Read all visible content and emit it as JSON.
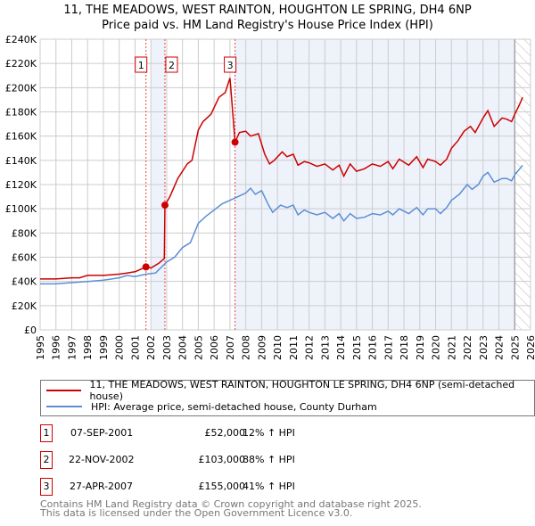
{
  "title_line1": "11, THE MEADOWS, WEST RAINTON, HOUGHTON LE SPRING, DH4 6NP",
  "title_line2": "Price paid vs. HM Land Registry's House Price Index (HPI)",
  "colors": {
    "property": "#cc0000",
    "hpi": "#5b8fd4",
    "shade": "#eef2fb",
    "grid": "#cccccc"
  },
  "chart_data": {
    "type": "line",
    "title": "11, THE MEADOWS, WEST RAINTON, HOUGHTON LE SPRING, DH4 6NP - Price paid vs. HM Land Registry's House Price Index (HPI)",
    "xlim": [
      1995,
      2026
    ],
    "ylim": [
      0,
      240000
    ],
    "x_ticks": [
      "1995",
      "1996",
      "1997",
      "1998",
      "1999",
      "2000",
      "2001",
      "2002",
      "2003",
      "2004",
      "2005",
      "2006",
      "2007",
      "2008",
      "2009",
      "2010",
      "2011",
      "2012",
      "2013",
      "2014",
      "2015",
      "2016",
      "2017",
      "2018",
      "2019",
      "2020",
      "2021",
      "2022",
      "2023",
      "2024",
      "2025",
      "2026"
    ],
    "y_ticks": [
      "£0",
      "£20K",
      "£40K",
      "£60K",
      "£80K",
      "£100K",
      "£120K",
      "£140K",
      "£160K",
      "£180K",
      "£200K",
      "£220K",
      "£240K"
    ],
    "grid": true,
    "forecast_from": 2025.0,
    "series": [
      {
        "name": "11, THE MEADOWS, WEST RAINTON, HOUGHTON LE SPRING, DH4 6NP (semi-detached house)",
        "x": [
          1995,
          1996,
          1997,
          1997.5,
          1998,
          1999,
          2000,
          2000.5,
          2001,
          2001.69,
          2002,
          2002.5,
          2002.85,
          2002.89,
          2003.2,
          2003.7,
          2004.3,
          2004.6,
          2005,
          2005.3,
          2005.8,
          2006.3,
          2006.7,
          2007.0,
          2007.05,
          2007.32,
          2007.6,
          2008,
          2008.3,
          2008.8,
          2009.2,
          2009.5,
          2009.8,
          2010.3,
          2010.6,
          2011,
          2011.3,
          2011.7,
          2012,
          2012.5,
          2013,
          2013.5,
          2013.9,
          2014.2,
          2014.6,
          2015,
          2015.5,
          2016,
          2016.5,
          2017,
          2017.3,
          2017.7,
          2018.3,
          2018.8,
          2019.2,
          2019.5,
          2020,
          2020.3,
          2020.7,
          2021,
          2021.4,
          2021.8,
          2022.2,
          2022.5,
          2023,
          2023.3,
          2023.7,
          2024.2,
          2024.5,
          2024.8,
          2025,
          2025.3,
          2025.5
        ],
        "y": [
          42000,
          42000,
          43000,
          43000,
          45000,
          45000,
          46000,
          47000,
          48000,
          52000,
          51000,
          55000,
          59000,
          103000,
          110000,
          125000,
          137000,
          140000,
          165000,
          172000,
          178000,
          192000,
          196000,
          208000,
          200000,
          155000,
          163000,
          164000,
          160000,
          162000,
          145000,
          137000,
          140000,
          147000,
          143000,
          145000,
          136000,
          139000,
          138000,
          135000,
          137000,
          132000,
          136000,
          127000,
          137000,
          131000,
          133000,
          137000,
          135000,
          139000,
          133000,
          141000,
          136000,
          143000,
          134000,
          141000,
          139000,
          136000,
          141000,
          150000,
          156000,
          164000,
          168000,
          163000,
          175000,
          181000,
          168000,
          175000,
          174000,
          172000,
          178000,
          186000,
          192000
        ]
      },
      {
        "name": "HPI: Average price, semi-detached house, County Durham",
        "x": [
          1995,
          1996,
          1997,
          1998,
          1999,
          2000,
          2000.5,
          2001,
          2001.7,
          2002.3,
          2003,
          2003.5,
          2004,
          2004.5,
          2005,
          2005.5,
          2006,
          2006.5,
          2007,
          2007.5,
          2008,
          2008.3,
          2008.6,
          2009,
          2009.4,
          2009.7,
          2010.2,
          2010.6,
          2011,
          2011.3,
          2011.7,
          2012,
          2012.5,
          2013,
          2013.5,
          2013.9,
          2014.2,
          2014.6,
          2015,
          2015.5,
          2016,
          2016.5,
          2017,
          2017.3,
          2017.7,
          2018.3,
          2018.8,
          2019.2,
          2019.5,
          2020,
          2020.3,
          2020.7,
          2021,
          2021.5,
          2022,
          2022.3,
          2022.7,
          2023,
          2023.3,
          2023.7,
          2024.2,
          2024.5,
          2024.8,
          2025,
          2025.5
        ],
        "y": [
          38000,
          38000,
          39000,
          40000,
          41000,
          43000,
          45000,
          44000,
          46000,
          47000,
          56000,
          60000,
          68000,
          72000,
          88000,
          94000,
          99000,
          104000,
          107000,
          110000,
          113000,
          117000,
          112000,
          115000,
          104000,
          97000,
          103000,
          101000,
          103000,
          95000,
          99000,
          97000,
          95000,
          97000,
          92000,
          96000,
          90000,
          96000,
          92000,
          93000,
          96000,
          95000,
          98000,
          95000,
          100000,
          96000,
          101000,
          95000,
          100000,
          100000,
          96000,
          101000,
          107000,
          112000,
          120000,
          116000,
          120000,
          127000,
          130000,
          122000,
          125000,
          125000,
          123000,
          128000,
          136000
        ]
      }
    ],
    "sales": [
      {
        "label": "1",
        "x": 2001.69,
        "y": 52000
      },
      {
        "label": "2",
        "x": 2002.89,
        "y": 103000
      },
      {
        "label": "3",
        "x": 2007.32,
        "y": 155000
      }
    ],
    "shaded_ranges": [
      [
        2002.0,
        2002.89
      ],
      [
        2007.32,
        2025.0
      ]
    ]
  },
  "legend": {
    "property": "11, THE MEADOWS, WEST RAINTON, HOUGHTON LE SPRING, DH4 6NP (semi-detached house)",
    "hpi": "HPI: Average price, semi-detached house, County Durham"
  },
  "transactions": [
    {
      "num": "1",
      "date": "07-SEP-2001",
      "price": "£52,000",
      "hpi": "12% ↑ HPI"
    },
    {
      "num": "2",
      "date": "22-NOV-2002",
      "price": "£103,000",
      "hpi": "88% ↑ HPI"
    },
    {
      "num": "3",
      "date": "27-APR-2007",
      "price": "£155,000",
      "hpi": "41% ↑ HPI"
    }
  ],
  "footer": {
    "line1": "Contains HM Land Registry data © Crown copyright and database right 2025.",
    "line2": "This data is licensed under the Open Government Licence v3.0."
  }
}
